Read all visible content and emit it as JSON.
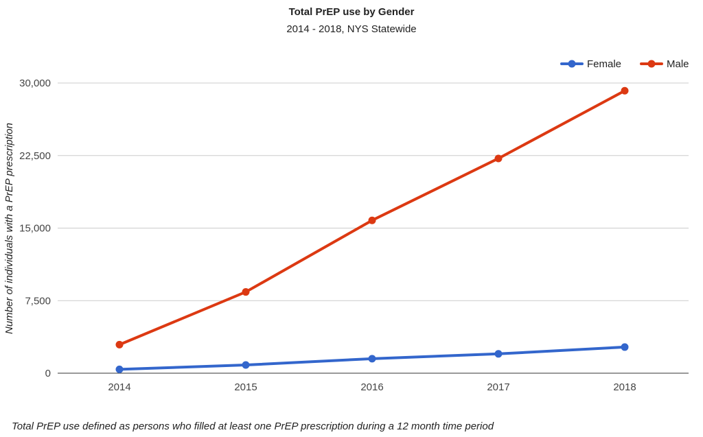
{
  "chart_data": {
    "type": "line",
    "title": "Total PrEP use by Gender",
    "subtitle": "2014 - 2018, NYS Statewide",
    "xlabel": "",
    "ylabel": "Number of individuals with a PrEP prescription",
    "footnote": "Total PrEP use defined as persons who filled at least one PrEP prescription during a 12 month time period",
    "categories": [
      "2014",
      "2015",
      "2016",
      "2017",
      "2018"
    ],
    "ylim": [
      0,
      30000
    ],
    "yticks": [
      0,
      7500,
      15000,
      22500,
      30000
    ],
    "ytick_labels": [
      "0",
      "7,500",
      "15,000",
      "22,500",
      "30,000"
    ],
    "grid": true,
    "legend_position": "top-right",
    "series": [
      {
        "name": "Female",
        "color": "#3366cc",
        "values": [
          400,
          850,
          1500,
          2000,
          2700
        ]
      },
      {
        "name": "Male",
        "color": "#dc3912",
        "values": [
          2950,
          8400,
          15800,
          22200,
          29200
        ]
      }
    ]
  }
}
